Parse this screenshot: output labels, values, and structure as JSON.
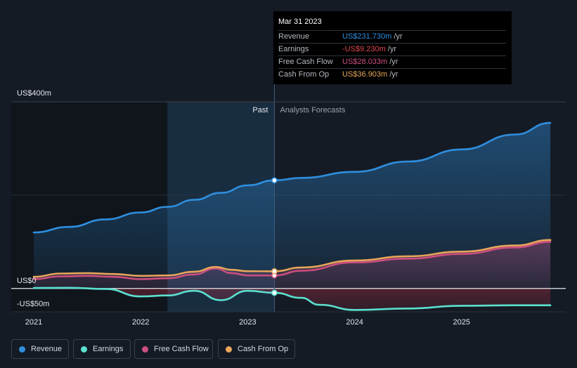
{
  "chart_data": {
    "type": "area",
    "x_ticks": [
      "2021",
      "2022",
      "2023",
      "2024",
      "2025"
    ],
    "y_labels": {
      "top": "US$400m",
      "zero": "US$0",
      "bottom": "-US$50m"
    },
    "ylim": [
      -50,
      400
    ],
    "past_label": "Past",
    "forecast_label": "Analysts Forecasts",
    "divider_x": 2023.25,
    "series": [
      {
        "name": "Revenue",
        "color": "#2f8fdf",
        "points": [
          [
            2021.0,
            120
          ],
          [
            2021.33,
            132
          ],
          [
            2021.67,
            148
          ],
          [
            2022.0,
            163
          ],
          [
            2022.25,
            175
          ],
          [
            2022.5,
            190
          ],
          [
            2022.75,
            205
          ],
          [
            2023.0,
            221
          ],
          [
            2023.25,
            231.73
          ],
          [
            2023.5,
            237
          ],
          [
            2024.0,
            250
          ],
          [
            2024.5,
            272
          ],
          [
            2025.0,
            298
          ],
          [
            2025.5,
            330
          ],
          [
            2025.83,
            355
          ]
        ]
      },
      {
        "name": "Earnings",
        "color": "#5ce0cf",
        "points": [
          [
            2021.0,
            1
          ],
          [
            2021.33,
            1.5
          ],
          [
            2021.67,
            -1
          ],
          [
            2022.0,
            -17
          ],
          [
            2022.25,
            -15
          ],
          [
            2022.5,
            -5
          ],
          [
            2022.75,
            -25
          ],
          [
            2023.0,
            -5
          ],
          [
            2023.25,
            -9.23
          ],
          [
            2023.5,
            -20
          ],
          [
            2023.67,
            -35
          ],
          [
            2024.0,
            -46
          ],
          [
            2024.5,
            -43
          ],
          [
            2025.0,
            -37
          ],
          [
            2025.5,
            -36
          ],
          [
            2025.83,
            -36
          ]
        ]
      },
      {
        "name": "Free Cash Flow",
        "color": "#cc4f7f",
        "points": [
          [
            2021.0,
            20
          ],
          [
            2021.25,
            26
          ],
          [
            2021.5,
            27
          ],
          [
            2021.75,
            25
          ],
          [
            2022.0,
            20
          ],
          [
            2022.25,
            22
          ],
          [
            2022.5,
            30
          ],
          [
            2022.7,
            43
          ],
          [
            2022.85,
            33
          ],
          [
            2023.0,
            28
          ],
          [
            2023.25,
            28.03
          ],
          [
            2023.5,
            38
          ],
          [
            2024.0,
            56
          ],
          [
            2024.5,
            64
          ],
          [
            2025.0,
            74
          ],
          [
            2025.5,
            88
          ],
          [
            2025.83,
            100
          ]
        ]
      },
      {
        "name": "Cash From Op",
        "color": "#e8a65a",
        "points": [
          [
            2021.0,
            25
          ],
          [
            2021.25,
            32
          ],
          [
            2021.5,
            33
          ],
          [
            2021.75,
            31
          ],
          [
            2022.0,
            27
          ],
          [
            2022.25,
            28
          ],
          [
            2022.5,
            36
          ],
          [
            2022.7,
            46
          ],
          [
            2022.85,
            40
          ],
          [
            2023.0,
            37
          ],
          [
            2023.25,
            36.9
          ],
          [
            2023.5,
            45
          ],
          [
            2024.0,
            60
          ],
          [
            2024.5,
            69
          ],
          [
            2025.0,
            79
          ],
          [
            2025.5,
            92
          ],
          [
            2025.83,
            104
          ]
        ]
      }
    ]
  },
  "tooltip": {
    "date": "Mar 31 2023",
    "rows": [
      {
        "label": "Revenue",
        "value": "US$231.730m",
        "unit": "/yr",
        "color": "#2f8fdf"
      },
      {
        "label": "Earnings",
        "value": "-US$9.230m",
        "unit": "/yr",
        "color": "#e0464d"
      },
      {
        "label": "Free Cash Flow",
        "value": "US$28.033m",
        "unit": "/yr",
        "color": "#cc4f7f"
      },
      {
        "label": "Cash From Op",
        "value": "US$36.903m",
        "unit": "/yr",
        "color": "#e8a65a"
      }
    ]
  },
  "legend": [
    {
      "label": "Revenue",
      "color": "#2f8fdf"
    },
    {
      "label": "Earnings",
      "color": "#5ce0cf"
    },
    {
      "label": "Free Cash Flow",
      "color": "#cc4f7f"
    },
    {
      "label": "Cash From Op",
      "color": "#e8a65a"
    }
  ]
}
